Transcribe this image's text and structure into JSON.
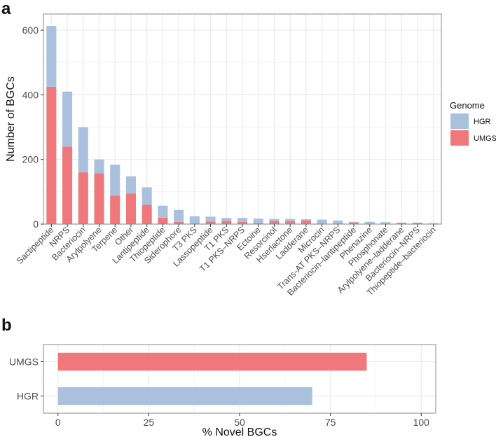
{
  "colors": {
    "hgr": "#a9c1dc",
    "umgs": "#f0787c",
    "grid": "#ebebeb",
    "panel_border": "#888888",
    "text": "#222222",
    "axis_text": "#4d4d4d"
  },
  "chart_data": [
    {
      "panel_label": "a",
      "type": "bar",
      "stacked": true,
      "xlabel": "",
      "ylabel": "Number of BGCs",
      "ylim": [
        0,
        650
      ],
      "yticks": [
        0,
        200,
        400,
        600
      ],
      "categories": [
        "Sactipeptide",
        "NRPS",
        "Bacteriocin",
        "Arylpolyene",
        "Terpene",
        "Other",
        "Lantipeptide",
        "Thiopeptide",
        "Siderophore",
        "T3 PKS",
        "Lassopeptide",
        "T1 PKS",
        "T1 PKS–NRPS",
        "Ectoine",
        "Resorcinol",
        "Hserlactone",
        "Ladderane",
        "Microcin",
        "Trans-AT PKS–NRPS",
        "Bacteriocin–lantipeptide",
        "Phenazine",
        "Phosphonate",
        "Arylpolyene–ladderane",
        "Bacteriocin–NRPS",
        "Thiopeptide–bacteriocin"
      ],
      "series": [
        {
          "name": "UMGS",
          "values": [
            425,
            240,
            160,
            157,
            88,
            95,
            60,
            20,
            7,
            2,
            8,
            10,
            7,
            3,
            9,
            9,
            11,
            2,
            2,
            5,
            1,
            1,
            4,
            4,
            1
          ]
        },
        {
          "name": "HGR",
          "values": [
            188,
            170,
            140,
            43,
            96,
            53,
            54,
            37,
            37,
            22,
            15,
            9,
            12,
            14,
            7,
            7,
            4,
            12,
            9,
            2,
            6,
            5,
            0,
            0,
            2
          ]
        }
      ],
      "legend": {
        "title": "Genome",
        "entries": [
          "HGR",
          "UMGS"
        ],
        "placement": "right"
      },
      "grid": true
    },
    {
      "panel_label": "b",
      "type": "bar",
      "orientation": "horizontal",
      "xlabel": "% Novel BGCs",
      "ylabel": "",
      "xlim": [
        -4,
        104
      ],
      "xticks": [
        0,
        25,
        50,
        75,
        100
      ],
      "categories": [
        "UMGS",
        "HGR"
      ],
      "values": [
        85,
        70
      ],
      "grid": true
    }
  ]
}
